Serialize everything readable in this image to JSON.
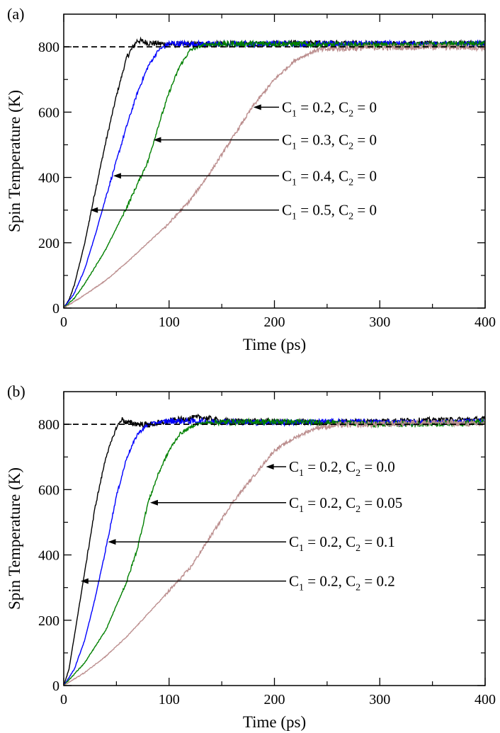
{
  "colors": {
    "axis": "#000000",
    "reference_line": "#000000",
    "series": [
      "#000000",
      "#0000ff",
      "#008000",
      "#bc8f8f"
    ]
  },
  "chart_data": [
    {
      "type": "line",
      "panel_label": "(a)",
      "xlabel": "Time (ps)",
      "ylabel": "Spin Temperature (K)",
      "xlim": [
        0,
        400
      ],
      "ylim": [
        0,
        900
      ],
      "xticks": [
        0,
        100,
        200,
        300,
        400
      ],
      "yticks": [
        0,
        200,
        400,
        600,
        800
      ],
      "grid": false,
      "reference_line": {
        "y": 800,
        "style": "dashed"
      },
      "series": [
        {
          "equil_time": 60,
          "color": "#000000",
          "points": [
            [
              0,
              0
            ],
            [
              5,
              25
            ],
            [
              10,
              70
            ],
            [
              20,
              200
            ],
            [
              30,
              360
            ],
            [
              40,
              510
            ],
            [
              50,
              650
            ],
            [
              60,
              770
            ],
            [
              70,
              820
            ],
            [
              80,
              812
            ],
            [
              100,
              808
            ],
            [
              150,
              808
            ],
            [
              200,
              810
            ],
            [
              250,
              812
            ],
            [
              300,
              808
            ],
            [
              350,
              810
            ],
            [
              400,
              812
            ]
          ]
        },
        {
          "equil_time": 95,
          "color": "#0000ff",
          "points": [
            [
              0,
              0
            ],
            [
              10,
              45
            ],
            [
              20,
              120
            ],
            [
              30,
              225
            ],
            [
              40,
              340
            ],
            [
              50,
              450
            ],
            [
              60,
              560
            ],
            [
              70,
              660
            ],
            [
              80,
              740
            ],
            [
              90,
              790
            ],
            [
              100,
              810
            ],
            [
              150,
              808
            ],
            [
              200,
              810
            ],
            [
              250,
              808
            ],
            [
              300,
              810
            ],
            [
              350,
              808
            ],
            [
              400,
              810
            ]
          ]
        },
        {
          "equil_time": 140,
          "color": "#008000",
          "points": [
            [
              0,
              0
            ],
            [
              10,
              30
            ],
            [
              20,
              75
            ],
            [
              40,
              180
            ],
            [
              60,
              310
            ],
            [
              70,
              380
            ],
            [
              80,
              450
            ],
            [
              90,
              560
            ],
            [
              100,
              660
            ],
            [
              110,
              740
            ],
            [
              120,
              790
            ],
            [
              135,
              808
            ],
            [
              200,
              810
            ],
            [
              250,
              806
            ],
            [
              300,
              805
            ],
            [
              350,
              806
            ],
            [
              400,
              810
            ]
          ]
        },
        {
          "equil_time": 240,
          "color": "#bc8f8f",
          "points": [
            [
              0,
              0
            ],
            [
              20,
              40
            ],
            [
              40,
              85
            ],
            [
              60,
              140
            ],
            [
              80,
              200
            ],
            [
              100,
              260
            ],
            [
              120,
              330
            ],
            [
              140,
              420
            ],
            [
              160,
              520
            ],
            [
              180,
              620
            ],
            [
              200,
              700
            ],
            [
              220,
              760
            ],
            [
              240,
              790
            ],
            [
              260,
              795
            ],
            [
              300,
              798
            ],
            [
              350,
              800
            ],
            [
              400,
              798
            ]
          ]
        }
      ],
      "annotations": [
        {
          "pre": "C",
          "sub1": "1",
          "mid": " = 0.2, C",
          "sub2": "2",
          "post": " = 0",
          "ann_y": 615,
          "arrow_x": 180,
          "arrow_y": 615
        },
        {
          "pre": "C",
          "sub1": "1",
          "mid": " = 0.3, C",
          "sub2": "2",
          "post": " = 0",
          "ann_y": 515,
          "arrow_x": 85,
          "arrow_y": 515
        },
        {
          "pre": "C",
          "sub1": "1",
          "mid": " = 0.4, C",
          "sub2": "2",
          "post": " = 0",
          "ann_y": 405,
          "arrow_x": 47,
          "arrow_y": 405
        },
        {
          "pre": "C",
          "sub1": "1",
          "mid": " = 0.5, C",
          "sub2": "2",
          "post": " = 0",
          "ann_y": 300,
          "arrow_x": 25,
          "arrow_y": 300
        }
      ]
    },
    {
      "type": "line",
      "panel_label": "(b)",
      "xlabel": "Time (ps)",
      "ylabel": "Spin Temperature (K)",
      "xlim": [
        0,
        400
      ],
      "ylim": [
        0,
        900
      ],
      "xticks": [
        0,
        100,
        200,
        300,
        400
      ],
      "yticks": [
        0,
        200,
        400,
        600,
        800
      ],
      "grid": false,
      "reference_line": {
        "y": 800,
        "style": "dashed"
      },
      "series": [
        {
          "equil_time": 55,
          "color": "#000000",
          "points": [
            [
              0,
              0
            ],
            [
              5,
              50
            ],
            [
              10,
              150
            ],
            [
              20,
              350
            ],
            [
              30,
              550
            ],
            [
              40,
              700
            ],
            [
              50,
              790
            ],
            [
              55,
              815
            ],
            [
              60,
              805
            ],
            [
              80,
              798
            ],
            [
              100,
              810
            ],
            [
              130,
              822
            ],
            [
              150,
              810
            ],
            [
              200,
              808
            ],
            [
              250,
              805
            ],
            [
              300,
              810
            ],
            [
              350,
              812
            ],
            [
              400,
              815
            ]
          ]
        },
        {
          "equil_time": 95,
          "color": "#0000ff",
          "points": [
            [
              0,
              0
            ],
            [
              10,
              50
            ],
            [
              20,
              140
            ],
            [
              30,
              270
            ],
            [
              40,
              420
            ],
            [
              50,
              580
            ],
            [
              60,
              700
            ],
            [
              70,
              770
            ],
            [
              80,
              800
            ],
            [
              90,
              806
            ],
            [
              100,
              810
            ],
            [
              150,
              808
            ],
            [
              200,
              805
            ],
            [
              250,
              808
            ],
            [
              300,
              806
            ],
            [
              350,
              805
            ],
            [
              400,
              808
            ]
          ]
        },
        {
          "equil_time": 140,
          "color": "#008000",
          "points": [
            [
              0,
              0
            ],
            [
              20,
              70
            ],
            [
              40,
              170
            ],
            [
              60,
              320
            ],
            [
              70,
              420
            ],
            [
              80,
              560
            ],
            [
              90,
              650
            ],
            [
              100,
              720
            ],
            [
              110,
              770
            ],
            [
              125,
              800
            ],
            [
              140,
              806
            ],
            [
              200,
              808
            ],
            [
              250,
              805
            ],
            [
              300,
              800
            ],
            [
              350,
              802
            ],
            [
              400,
              806
            ]
          ]
        },
        {
          "equil_time": 240,
          "color": "#bc8f8f",
          "points": [
            [
              0,
              0
            ],
            [
              20,
              40
            ],
            [
              40,
              90
            ],
            [
              60,
              150
            ],
            [
              80,
              220
            ],
            [
              100,
              290
            ],
            [
              120,
              360
            ],
            [
              140,
              460
            ],
            [
              160,
              560
            ],
            [
              180,
              640
            ],
            [
              190,
              680
            ],
            [
              200,
              720
            ],
            [
              220,
              760
            ],
            [
              240,
              790
            ],
            [
              260,
              798
            ],
            [
              300,
              800
            ],
            [
              350,
              806
            ],
            [
              400,
              800
            ]
          ]
        }
      ],
      "annotations": [
        {
          "pre": "C",
          "sub1": "1",
          "mid": " = 0.2, C",
          "sub2": "2",
          "post": " = 0.0",
          "ann_y": 670,
          "arrow_x": 192,
          "arrow_y": 670
        },
        {
          "pre": "C",
          "sub1": "1",
          "mid": " = 0.2, C",
          "sub2": "2",
          "post": " = 0.05",
          "ann_y": 560,
          "arrow_x": 82,
          "arrow_y": 560
        },
        {
          "pre": "C",
          "sub1": "1",
          "mid": " = 0.2, C",
          "sub2": "2",
          "post": " = 0.1",
          "ann_y": 440,
          "arrow_x": 42,
          "arrow_y": 440
        },
        {
          "pre": "C",
          "sub1": "1",
          "mid": " = 0.2, C",
          "sub2": "2",
          "post": " = 0.2",
          "ann_y": 320,
          "arrow_x": 16,
          "arrow_y": 320
        }
      ]
    }
  ]
}
